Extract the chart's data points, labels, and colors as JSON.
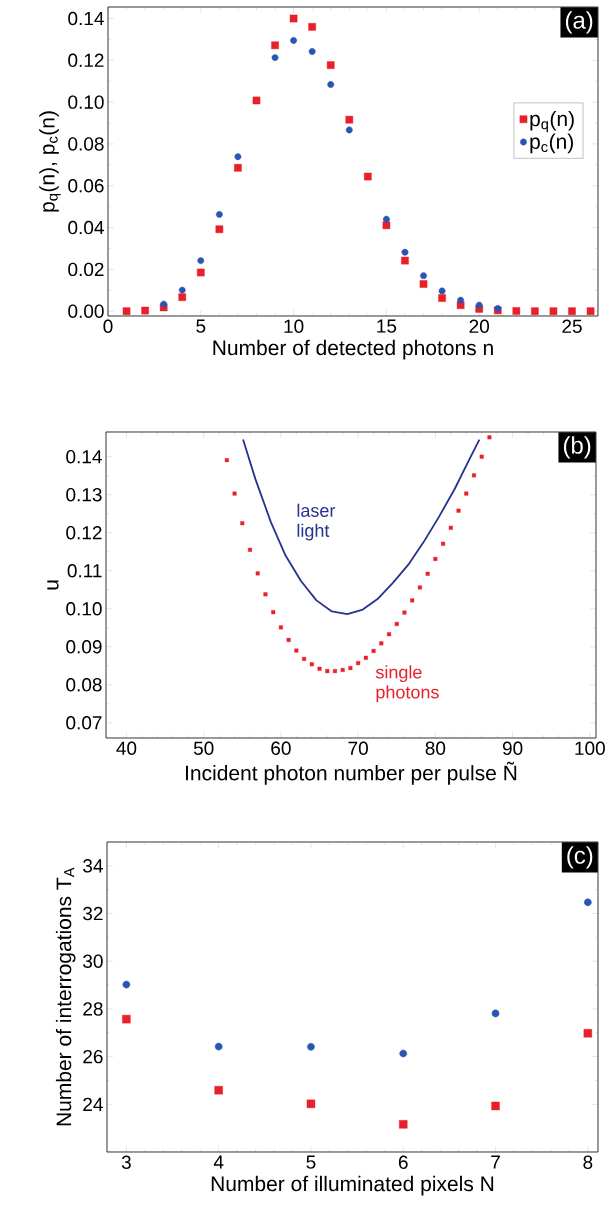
{
  "chart_data": [
    {
      "type": "scatter",
      "xlabel": "Number of detected photons n",
      "ylabel": "p$_{q}$(n), p$_{c}$(n)",
      "annotations": [
        "(a)"
      ],
      "x": [
        1,
        2,
        3,
        4,
        5,
        6,
        7,
        8,
        9,
        10,
        11,
        12,
        13,
        14,
        15,
        16,
        17,
        18,
        19,
        20,
        21,
        22,
        23,
        24,
        25,
        26
      ],
      "series": [
        {
          "name": "p$_{q}$(n)",
          "color": "#e8202a",
          "marker": "square",
          "values": [
            0.0,
            0.0003,
            0.0018,
            0.0067,
            0.0185,
            0.0392,
            0.0686,
            0.1008,
            0.1272,
            0.14,
            0.136,
            0.1177,
            0.0916,
            0.0644,
            0.0411,
            0.0242,
            0.013,
            0.0063,
            0.0029,
            0.0011,
            0.0004,
            0.0001,
            0.0,
            0.0,
            0.0,
            0.0
          ]
        },
        {
          "name": "p$_{c}$(n)",
          "color": "#2a55b0",
          "marker": "circle",
          "values": [
            null,
            null,
            0.0034,
            0.0101,
            0.0242,
            0.0463,
            0.0739,
            null,
            0.1213,
            0.1295,
            0.1242,
            0.1084,
            0.0867,
            null,
            0.044,
            0.0282,
            0.017,
            0.0097,
            0.0053,
            0.0029,
            0.0013,
            null,
            null,
            null,
            null,
            null
          ]
        }
      ],
      "xlim": [
        0,
        26.4
      ],
      "ylim": [
        -0.0023,
        0.1455
      ],
      "xticks": [
        0,
        5,
        10,
        15,
        20,
        25
      ],
      "yticks": [
        {
          "value": 0,
          "label": "0.00"
        },
        {
          "value": 0.02,
          "label": "0.02"
        },
        {
          "value": 0.04,
          "label": "0.04"
        },
        {
          "value": 0.06,
          "label": "0.06"
        },
        {
          "value": 0.08,
          "label": "0.08"
        },
        {
          "value": 0.1,
          "label": "0.10"
        },
        {
          "value": 0.12,
          "label": "0.12"
        },
        {
          "value": 0.14,
          "label": "0.14"
        }
      ],
      "legend": "right"
    },
    {
      "type": "scatter",
      "xlabel": "Incident photon number per pulse Ñ",
      "ylabel": "u",
      "annotations": [
        "(b)"
      ],
      "series": [
        {
          "name": "laser light",
          "type": "line",
          "color": "#27318f",
          "marker": "none",
          "x": [
            55.1,
            56.7,
            58.7,
            60.6,
            62.6,
            64.6,
            66.6,
            68.6,
            70.6,
            72.6,
            74.5,
            76.5,
            78.5,
            80.5,
            82.5,
            84.4,
            85.7
          ],
          "values": [
            0.1445,
            0.1341,
            0.1228,
            0.114,
            0.1073,
            0.1022,
            0.0993,
            0.0986,
            0.0998,
            0.1027,
            0.1068,
            0.1116,
            0.1176,
            0.1243,
            0.1315,
            0.1393,
            0.1445
          ]
        },
        {
          "name": "single photons",
          "type": "scatter",
          "color": "#e8202a",
          "marker": "square",
          "x": [
            53,
            54,
            55,
            56,
            57,
            58,
            59,
            60,
            61,
            62,
            63,
            64,
            65,
            66,
            67,
            68,
            69,
            70,
            71,
            72,
            73,
            74,
            75,
            76,
            77,
            78,
            79,
            80,
            81,
            82,
            83,
            84,
            85,
            86,
            87
          ],
          "values": [
            0.1391,
            0.1303,
            0.1225,
            0.1155,
            0.1093,
            0.1038,
            0.0991,
            0.0951,
            0.0918,
            0.089,
            0.0868,
            0.0854,
            0.0842,
            0.0836,
            0.0836,
            0.0839,
            0.0844,
            0.0857,
            0.0871,
            0.0889,
            0.0909,
            0.0933,
            0.096,
            0.099,
            0.1022,
            0.1056,
            0.1092,
            0.1131,
            0.1171,
            0.1213,
            0.1258,
            0.1303,
            0.1351,
            0.14,
            0.1451
          ]
        }
      ],
      "xlim": [
        37.35,
        100.8
      ],
      "ylim": [
        0.066,
        0.1465
      ],
      "xticks": [
        40,
        50,
        60,
        70,
        80,
        90,
        100
      ],
      "yticks": [
        {
          "value": 0.07,
          "label": "0.07"
        },
        {
          "value": 0.08,
          "label": "0.08"
        },
        {
          "value": 0.09,
          "label": "0.09"
        },
        {
          "value": 0.1,
          "label": "0.10"
        },
        {
          "value": 0.11,
          "label": "0.11"
        },
        {
          "value": 0.12,
          "label": "0.12"
        },
        {
          "value": 0.13,
          "label": "0.13"
        },
        {
          "value": 0.14,
          "label": "0.14"
        }
      ]
    },
    {
      "type": "scatter",
      "xlabel": "Number of illuminated pixels N",
      "ylabel": "Number of interrogations T$_{A}$",
      "annotations": [
        "(c)"
      ],
      "x": [
        3,
        4,
        5,
        6,
        7,
        8
      ],
      "series": [
        {
          "color": "#2a55b0",
          "marker": "circle",
          "values": [
            29.02,
            26.42,
            26.41,
            26.13,
            27.81,
            32.47
          ]
        },
        {
          "color": "#e8202a",
          "marker": "square",
          "values": [
            27.57,
            24.59,
            24.02,
            23.16,
            23.93,
            26.98
          ]
        }
      ],
      "xlim": [
        2.79,
        8.11
      ],
      "ylim": [
        22,
        35
      ],
      "xticks": [
        3,
        4,
        5,
        6,
        7,
        8
      ],
      "yticks": [
        24,
        26,
        28,
        30,
        32,
        34
      ]
    }
  ]
}
